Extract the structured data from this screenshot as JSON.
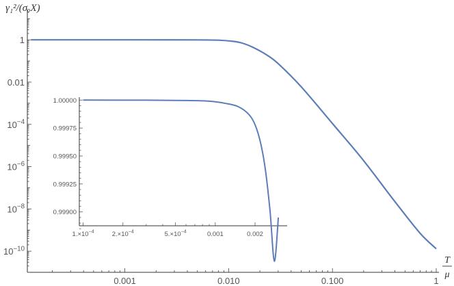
{
  "chart_data": [
    {
      "type": "line",
      "role": "main",
      "ylabel": "γ₁²/(σₒX)",
      "xlabel_num": "T",
      "xlabel_den": "μ",
      "x_scale": "log",
      "y_scale": "log",
      "xlim": [
        0.000115,
        1
      ],
      "ylim": [
        1e-11,
        20
      ],
      "x_ticks": [
        {
          "value": 0.001,
          "label": "0.001"
        },
        {
          "value": 0.01,
          "label": "0.010"
        },
        {
          "value": 0.1,
          "label": "0.100"
        },
        {
          "value": 1,
          "label": "1"
        }
      ],
      "y_ticks": [
        {
          "value": 1,
          "label": "1",
          "sup": ""
        },
        {
          "value": 0.01,
          "label": "0.01",
          "sup": ""
        },
        {
          "value": 0.0001,
          "label": "10",
          "sup": "−4"
        },
        {
          "value": 1e-06,
          "label": "10",
          "sup": "−6"
        },
        {
          "value": 1e-08,
          "label": "10",
          "sup": "−8"
        },
        {
          "value": 1e-10,
          "label": "10",
          "sup": "−10"
        }
      ],
      "grid": false,
      "color": "#5B7DB8",
      "series": [
        {
          "x": [
            0.000125,
            0.001,
            0.005,
            0.008,
            0.011,
            0.0135,
            0.017,
            0.023,
            0.03,
            0.05,
            0.1,
            0.2,
            0.4,
            0.7,
            1.0
          ],
          "y": [
            1,
            1,
            0.99,
            0.96,
            0.85,
            0.7,
            0.45,
            0.2,
            0.075,
            0.006,
            0.00011,
            1.9e-06,
            2.2e-08,
            7e-10,
            1.3e-10
          ]
        }
      ]
    },
    {
      "type": "line",
      "role": "inset",
      "x_scale": "log",
      "y_scale": "linear",
      "xlim": [
        9.35e-05,
        0.0035
      ],
      "ylim": [
        0.998876,
        1.000026
      ],
      "x_ticks": [
        {
          "value": 0.0001,
          "mant": "1.×10",
          "sup": "−4"
        },
        {
          "value": 0.0002,
          "mant": "2.×10",
          "sup": "−4"
        },
        {
          "value": 0.0005,
          "mant": "5.×10",
          "sup": "−4"
        },
        {
          "value": 0.001,
          "mant": "0.001",
          "sup": ""
        },
        {
          "value": 0.002,
          "mant": "0.002",
          "sup": ""
        }
      ],
      "y_ticks": [
        {
          "value": 1.0,
          "label": "1.00000"
        },
        {
          "value": 0.99975,
          "label": "0.99975"
        },
        {
          "value": 0.9995,
          "label": "0.99950"
        },
        {
          "value": 0.99925,
          "label": "0.99925"
        },
        {
          "value": 0.999,
          "label": "0.99900"
        }
      ],
      "grid": false,
      "color": "#5B7DB8",
      "series": [
        {
          "x": [
            0.0001,
            0.0003,
            0.0006,
            0.0009,
            0.0012,
            0.0015,
            0.0018,
            0.002,
            0.0022,
            0.0024,
            0.0026,
            0.0028,
            0.003
          ],
          "y": [
            1.0,
            0.999999,
            0.999996,
            0.99999,
            0.99997,
            0.99994,
            0.99987,
            0.99978,
            0.99962,
            0.99937,
            0.999,
            0.99856,
            0.99895
          ]
        }
      ]
    }
  ]
}
